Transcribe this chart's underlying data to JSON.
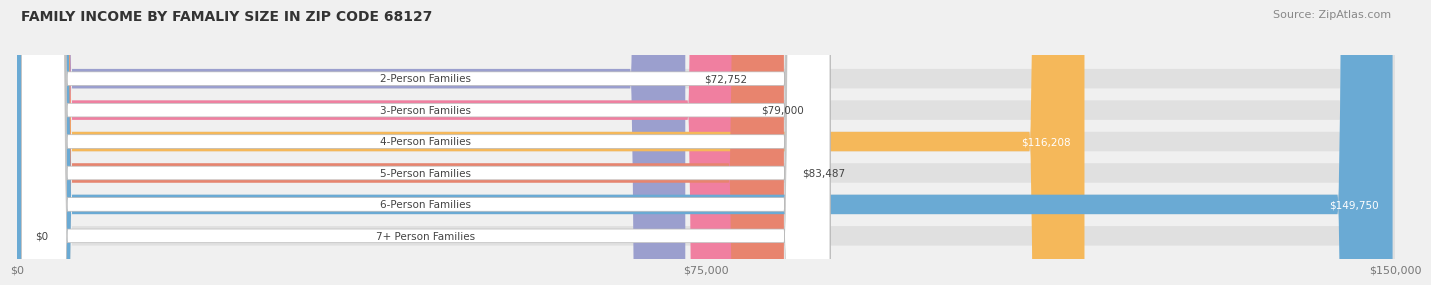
{
  "title": "FAMILY INCOME BY FAMALIY SIZE IN ZIP CODE 68127",
  "source": "Source: ZipAtlas.com",
  "categories": [
    "2-Person Families",
    "3-Person Families",
    "4-Person Families",
    "5-Person Families",
    "6-Person Families",
    "7+ Person Families"
  ],
  "values": [
    72752,
    79000,
    116208,
    83487,
    149750,
    0
  ],
  "bar_colors": [
    "#9b9fce",
    "#f07fa0",
    "#f5b85a",
    "#e8846e",
    "#6aaad4",
    "#c4a8d4"
  ],
  "label_colors": [
    "#444444",
    "#444444",
    "#ffffff",
    "#444444",
    "#ffffff",
    "#444444"
  ],
  "xlim": [
    0,
    150000
  ],
  "xticks": [
    0,
    75000,
    150000
  ],
  "xtick_labels": [
    "$0",
    "$75,000",
    "$150,000"
  ],
  "background_color": "#f0f0f0",
  "bar_bg_color": "#e0e0e0",
  "bar_height": 0.62,
  "value_labels": [
    "$72,752",
    "$79,000",
    "$116,208",
    "$83,487",
    "$149,750",
    "$0"
  ]
}
